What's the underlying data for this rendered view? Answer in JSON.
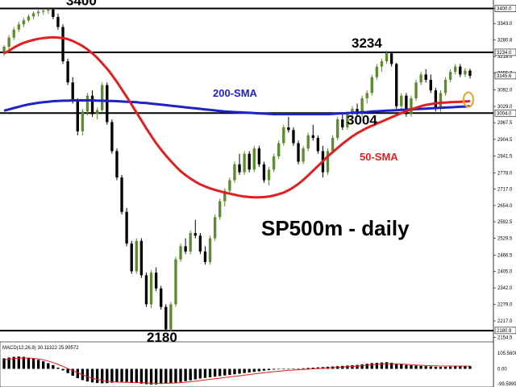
{
  "chart_data": {
    "type": "candlestick",
    "title": "SP500m - daily",
    "timeframe": "daily",
    "ylim": [
      2150,
      3420
    ],
    "y_ticks": [
      "3400.0",
      "3343.0",
      "3280.8",
      "3218.0",
      "3155.2",
      "3092.0",
      "3029.0",
      "2967.5",
      "2904.5",
      "2841.5",
      "2778.0",
      "2717.0",
      "2654.0",
      "2592.5",
      "2529.5",
      "2466.5",
      "2405.0",
      "2342.0",
      "2279.0",
      "2217.0",
      "2154.5"
    ],
    "price_tags": [
      {
        "text": "3400.0",
        "value": 3400.0,
        "bg": "#ffffff"
      },
      {
        "text": "3234.0",
        "value": 3234.0,
        "bg": "#ffffff"
      },
      {
        "text": "3145.6",
        "value": 3145.6,
        "bg": "#ffffff"
      },
      {
        "text": "3004.0",
        "value": 3004.0,
        "bg": "#ffffff"
      },
      {
        "text": "2180.9",
        "value": 2180.9,
        "bg": "#ffffff"
      }
    ],
    "horizontal_levels": [
      {
        "value": 3400,
        "label": "3400"
      },
      {
        "value": 3234,
        "label": "3234"
      },
      {
        "value": 3004,
        "label": "3004"
      },
      {
        "value": 2180,
        "label": "2180"
      }
    ],
    "candles_bull_color": "#5b8c2e",
    "candles_bear_color": "#000000",
    "candles": [
      [
        3235,
        3262,
        3220,
        3255
      ],
      [
        3255,
        3300,
        3245,
        3290
      ],
      [
        3290,
        3330,
        3280,
        3320
      ],
      [
        3320,
        3350,
        3310,
        3340
      ],
      [
        3340,
        3365,
        3328,
        3355
      ],
      [
        3355,
        3378,
        3348,
        3370
      ],
      [
        3370,
        3390,
        3358,
        3382
      ],
      [
        3382,
        3395,
        3370,
        3388
      ],
      [
        3388,
        3398,
        3376,
        3392
      ],
      [
        3392,
        3400,
        3380,
        3396
      ],
      [
        3396,
        3402,
        3360,
        3368
      ],
      [
        3368,
        3380,
        3320,
        3330
      ],
      [
        3330,
        3340,
        3190,
        3200
      ],
      [
        3200,
        3210,
        3110,
        3120
      ],
      [
        3120,
        3140,
        3040,
        3050
      ],
      [
        3050,
        3060,
        2920,
        2935
      ],
      [
        2935,
        3020,
        2920,
        3010
      ],
      [
        3010,
        3080,
        2995,
        3070
      ],
      [
        3070,
        3090,
        2990,
        3000
      ],
      [
        3000,
        3025,
        2980,
        3015
      ],
      [
        3015,
        3120,
        3005,
        3110
      ],
      [
        3110,
        3120,
        2960,
        2970
      ],
      [
        2970,
        2980,
        2850,
        2860
      ],
      [
        2860,
        2870,
        2750,
        2760
      ],
      [
        2760,
        2770,
        2620,
        2630
      ],
      [
        2630,
        2645,
        2500,
        2510
      ],
      [
        2510,
        2520,
        2395,
        2405
      ],
      [
        2405,
        2530,
        2395,
        2520
      ],
      [
        2520,
        2530,
        2380,
        2390
      ],
      [
        2390,
        2400,
        2270,
        2280
      ],
      [
        2280,
        2410,
        2265,
        2400
      ],
      [
        2400,
        2420,
        2330,
        2340
      ],
      [
        2340,
        2350,
        2260,
        2270
      ],
      [
        2270,
        2280,
        2178,
        2185
      ],
      [
        2185,
        2290,
        2178,
        2280
      ],
      [
        2280,
        2460,
        2270,
        2450
      ],
      [
        2450,
        2510,
        2440,
        2500
      ],
      [
        2500,
        2530,
        2470,
        2480
      ],
      [
        2480,
        2560,
        2470,
        2550
      ],
      [
        2550,
        2600,
        2530,
        2540
      ],
      [
        2540,
        2550,
        2470,
        2480
      ],
      [
        2480,
        2500,
        2430,
        2440
      ],
      [
        2440,
        2540,
        2430,
        2530
      ],
      [
        2530,
        2620,
        2520,
        2610
      ],
      [
        2610,
        2680,
        2600,
        2670
      ],
      [
        2670,
        2720,
        2650,
        2710
      ],
      [
        2710,
        2760,
        2700,
        2750
      ],
      [
        2750,
        2820,
        2740,
        2810
      ],
      [
        2810,
        2850,
        2770,
        2780
      ],
      [
        2780,
        2860,
        2770,
        2850
      ],
      [
        2850,
        2860,
        2780,
        2790
      ],
      [
        2790,
        2880,
        2780,
        2870
      ],
      [
        2870,
        2880,
        2800,
        2810
      ],
      [
        2810,
        2820,
        2740,
        2750
      ],
      [
        2750,
        2800,
        2730,
        2790
      ],
      [
        2790,
        2850,
        2780,
        2840
      ],
      [
        2840,
        2900,
        2830,
        2890
      ],
      [
        2890,
        2960,
        2880,
        2950
      ],
      [
        2950,
        2990,
        2930,
        2940
      ],
      [
        2940,
        2950,
        2880,
        2890
      ],
      [
        2890,
        2900,
        2810,
        2820
      ],
      [
        2820,
        2880,
        2810,
        2870
      ],
      [
        2870,
        2930,
        2860,
        2920
      ],
      [
        2920,
        2960,
        2900,
        2910
      ],
      [
        2910,
        2920,
        2850,
        2860
      ],
      [
        2860,
        2880,
        2760,
        2780
      ],
      [
        2780,
        2870,
        2770,
        2860
      ],
      [
        2860,
        2920,
        2850,
        2910
      ],
      [
        2910,
        2990,
        2900,
        2980
      ],
      [
        2980,
        3000,
        2940,
        2950
      ],
      [
        2950,
        3010,
        2940,
        3000
      ],
      [
        3000,
        3030,
        2990,
        3020
      ],
      [
        3020,
        3040,
        2990,
        3000
      ],
      [
        3000,
        3070,
        2990,
        3060
      ],
      [
        3060,
        3090,
        3040,
        3080
      ],
      [
        3080,
        3150,
        3070,
        3140
      ],
      [
        3140,
        3190,
        3130,
        3180
      ],
      [
        3180,
        3210,
        3160,
        3200
      ],
      [
        3200,
        3240,
        3190,
        3230
      ],
      [
        3230,
        3236,
        3180,
        3190
      ],
      [
        3190,
        3195,
        3020,
        3030
      ],
      [
        3030,
        3080,
        3010,
        3070
      ],
      [
        3070,
        3080,
        2990,
        3000
      ],
      [
        3000,
        3070,
        2990,
        3060
      ],
      [
        3060,
        3130,
        3050,
        3120
      ],
      [
        3120,
        3160,
        3110,
        3150
      ],
      [
        3150,
        3170,
        3120,
        3130
      ],
      [
        3130,
        3150,
        3080,
        3090
      ],
      [
        3090,
        3100,
        3010,
        3020
      ],
      [
        3020,
        3090,
        3010,
        3080
      ],
      [
        3080,
        3140,
        3070,
        3130
      ],
      [
        3130,
        3170,
        3120,
        3160
      ],
      [
        3160,
        3190,
        3150,
        3180
      ],
      [
        3180,
        3190,
        3140,
        3150
      ],
      [
        3150,
        3175,
        3140,
        3165
      ],
      [
        3165,
        3172,
        3135,
        3145
      ]
    ],
    "series": [
      {
        "name": "200-SMA",
        "color": "#1e22c8",
        "values": [
          3013,
          3018,
          3023,
          3028,
          3033,
          3037,
          3040,
          3043,
          3045,
          3047,
          3049,
          3050,
          3051,
          3051,
          3052,
          3052,
          3052,
          3052,
          3052,
          3051,
          3051,
          3050,
          3050,
          3049,
          3048,
          3047,
          3046,
          3045,
          3043,
          3042,
          3040,
          3038,
          3036,
          3034,
          3032,
          3030,
          3028,
          3026,
          3024,
          3022,
          3020,
          3018,
          3016,
          3014,
          3012,
          3010,
          3009,
          3008,
          3007,
          3006,
          3005,
          3004,
          3003,
          3002,
          3001,
          3000,
          3000,
          3000,
          3000,
          3000,
          3000,
          3000,
          3000,
          3000,
          3000,
          3000,
          3000,
          3001,
          3002,
          3003,
          3004,
          3005,
          3006,
          3007,
          3008,
          3010,
          3011,
          3012,
          3013,
          3014,
          3015,
          3016,
          3017,
          3018,
          3019,
          3020,
          3021,
          3022,
          3023,
          3024,
          3025,
          3026,
          3027,
          3028,
          3029,
          3030
        ]
      },
      {
        "name": "50-SMA",
        "color": "#e02020",
        "values": [
          3230,
          3240,
          3252,
          3262,
          3270,
          3276,
          3281,
          3285,
          3288,
          3290,
          3291,
          3290,
          3288,
          3284,
          3277,
          3268,
          3258,
          3245,
          3230,
          3213,
          3193,
          3172,
          3148,
          3122,
          3094,
          3066,
          3036,
          3006,
          2976,
          2946,
          2918,
          2890,
          2866,
          2843,
          2822,
          2802,
          2784,
          2769,
          2756,
          2744,
          2734,
          2726,
          2719,
          2713,
          2708,
          2703,
          2699,
          2695,
          2691,
          2688,
          2686,
          2685,
          2685,
          2686,
          2688,
          2692,
          2697,
          2703,
          2712,
          2723,
          2736,
          2751,
          2768,
          2786,
          2804,
          2822,
          2840,
          2856,
          2872,
          2888,
          2902,
          2916,
          2928,
          2938,
          2948,
          2956,
          2964,
          2972,
          2980,
          2988,
          2996,
          3004,
          3011,
          3018,
          3024,
          3030,
          3035,
          3038,
          3041,
          3043,
          3044,
          3045,
          3046,
          3047,
          3048,
          3049
        ]
      }
    ],
    "sma_labels": [
      {
        "series": "200-SMA",
        "text": "200-SMA"
      },
      {
        "series": "50-SMA",
        "text": "50-SMA"
      }
    ],
    "macd": {
      "label": "MACD(12,26,9) 30.11322 25.99572",
      "y_ticks": [
        "105.5600",
        "0.00",
        "-99.5999"
      ],
      "ylim": [
        -110,
        110
      ],
      "histogram": [
        70,
        75,
        80,
        82,
        80,
        75,
        68,
        60,
        50,
        38,
        25,
        8,
        -10,
        -28,
        -46,
        -62,
        -75,
        -84,
        -90,
        -94,
        -96,
        -95,
        -92,
        -88,
        -86,
        -87,
        -90,
        -94,
        -98,
        -102,
        -104,
        -103,
        -100,
        -97,
        -95,
        -92,
        -88,
        -82,
        -76,
        -70,
        -64,
        -60,
        -56,
        -52,
        -48,
        -44,
        -40,
        -36,
        -32,
        -28,
        -24,
        -20,
        -16,
        -12,
        -8,
        -5,
        -3,
        -1,
        0,
        2,
        3,
        4,
        6,
        8,
        10,
        12,
        14,
        16,
        18,
        20,
        22,
        24,
        26,
        30,
        34,
        38,
        40,
        42,
        44,
        40,
        34,
        30,
        26,
        24,
        22,
        20,
        18,
        16,
        14,
        13,
        14,
        15,
        16,
        17,
        18,
        18
      ],
      "signal": [
        60,
        64,
        68,
        71,
        72,
        72,
        70,
        66,
        60,
        52,
        42,
        30,
        16,
        2,
        -12,
        -26,
        -40,
        -52,
        -62,
        -70,
        -77,
        -82,
        -86,
        -88,
        -89,
        -90,
        -91,
        -92,
        -93,
        -94,
        -95,
        -96,
        -96,
        -96,
        -95,
        -94,
        -92,
        -89,
        -86,
        -82,
        -78,
        -74,
        -70,
        -66,
        -62,
        -58,
        -54,
        -50,
        -46,
        -42,
        -38,
        -34,
        -30,
        -26,
        -22,
        -19,
        -16,
        -13,
        -10,
        -8,
        -6,
        -4,
        -2,
        0,
        2,
        4,
        6,
        8,
        10,
        12,
        14,
        16,
        18,
        21,
        24,
        27,
        30,
        32,
        34,
        34,
        33,
        32,
        30,
        28,
        26,
        24,
        22,
        21,
        20,
        19,
        19,
        19,
        19,
        19,
        19,
        19
      ]
    }
  }
}
